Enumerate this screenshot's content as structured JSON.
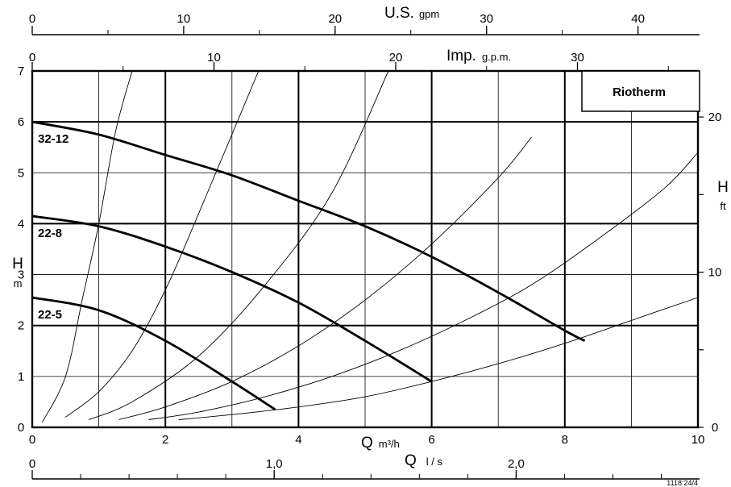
{
  "chart_data": {
    "type": "line",
    "brand": "Riotherm",
    "figure_code": "1118:24/4",
    "x": {
      "label_main": "Q",
      "label_unit": "m³/h",
      "range": [
        0,
        10
      ],
      "tick_labels": [
        {
          "v": 0,
          "text": "0"
        },
        {
          "v": 2,
          "text": "2"
        },
        {
          "v": 4,
          "text": "4"
        },
        {
          "v": 6,
          "text": "6"
        },
        {
          "v": 8,
          "text": "8"
        },
        {
          "v": 10,
          "text": "10"
        }
      ]
    },
    "y": {
      "label_main": "H",
      "label_unit": "m",
      "range": [
        0,
        7
      ],
      "tick_labels": [
        {
          "v": 0,
          "text": "0"
        },
        {
          "v": 1,
          "text": "1"
        },
        {
          "v": 2,
          "text": "2"
        },
        {
          "v": 3,
          "text": "3"
        },
        {
          "v": 4,
          "text": "4"
        },
        {
          "v": 5,
          "text": "5"
        },
        {
          "v": 6,
          "text": "6"
        },
        {
          "v": 7,
          "text": "7"
        }
      ]
    },
    "y_ft": {
      "label_main": "H",
      "label_unit": "ft",
      "tick_labels": [
        {
          "v": 0,
          "text": "0"
        },
        {
          "v": 10,
          "text": "10"
        },
        {
          "v": 20,
          "text": "20"
        }
      ]
    },
    "top_usgpm": {
      "label_main": "U.S.",
      "label_unit": "gpm",
      "tick_labels": [
        {
          "v": 0,
          "text": "0"
        },
        {
          "v": 10,
          "text": "10"
        },
        {
          "v": 20,
          "text": "20"
        },
        {
          "v": 30,
          "text": "30"
        },
        {
          "v": 40,
          "text": "40"
        }
      ]
    },
    "top_imp": {
      "label_main": "Imp.",
      "label_unit": "g.p.m.",
      "tick_labels": [
        {
          "v": 0,
          "text": "0"
        },
        {
          "v": 10,
          "text": "10"
        },
        {
          "v": 20,
          "text": "20"
        },
        {
          "v": 30,
          "text": "30"
        }
      ]
    },
    "bottom_ls": {
      "label_main": "Q",
      "label_unit": "l / s",
      "tick_labels": [
        {
          "v": 0,
          "text": "0"
        },
        {
          "v": 1,
          "text": "1,0"
        },
        {
          "v": 2,
          "text": "2,0"
        }
      ]
    },
    "series": [
      {
        "name": "32-12",
        "x": [
          0,
          1,
          2,
          3,
          4,
          5,
          6,
          7,
          8,
          8.3
        ],
        "y": [
          6.0,
          5.75,
          5.35,
          4.95,
          4.45,
          3.95,
          3.35,
          2.65,
          1.9,
          1.7
        ]
      },
      {
        "name": "22-8",
        "x": [
          0,
          1,
          2,
          3,
          4,
          5,
          6
        ],
        "y": [
          4.15,
          3.95,
          3.55,
          3.05,
          2.45,
          1.7,
          0.9
        ]
      },
      {
        "name": "22-5",
        "x": [
          0,
          1,
          2,
          3,
          3.65
        ],
        "y": [
          2.55,
          2.3,
          1.7,
          0.9,
          0.35
        ]
      }
    ],
    "system_curves": [
      {
        "x": [
          0.15,
          0.5,
          0.75,
          1.0,
          1.25,
          1.5
        ],
        "y": [
          0.1,
          1.0,
          2.5,
          4.0,
          5.8,
          7.0
        ]
      },
      {
        "x": [
          0.5,
          1.0,
          1.5,
          2.0,
          2.5,
          3.4
        ],
        "y": [
          0.2,
          0.7,
          1.5,
          2.7,
          4.2,
          7.0
        ]
      },
      {
        "x": [
          0.85,
          1.5,
          2.5,
          3.5,
          4.5,
          5.35
        ],
        "y": [
          0.15,
          0.5,
          1.4,
          2.8,
          4.6,
          7.0
        ]
      },
      {
        "x": [
          1.3,
          2.0,
          3.0,
          4.0,
          5.0,
          6.0,
          7.0,
          7.5
        ],
        "y": [
          0.15,
          0.4,
          0.9,
          1.6,
          2.5,
          3.6,
          4.9,
          5.7
        ]
      },
      {
        "x": [
          1.75,
          2.5,
          3.5,
          4.5,
          5.5,
          6.5,
          7.5,
          8.5,
          9.5,
          10.0
        ],
        "y": [
          0.15,
          0.3,
          0.6,
          1.0,
          1.5,
          2.1,
          2.8,
          3.7,
          4.7,
          5.4
        ]
      },
      {
        "x": [
          2.2,
          3.0,
          4.0,
          5.0,
          6.0,
          7.0,
          8.0,
          9.0,
          10.0
        ],
        "y": [
          0.15,
          0.25,
          0.4,
          0.6,
          0.9,
          1.25,
          1.65,
          2.1,
          2.55
        ]
      }
    ],
    "grid": true,
    "legend": "none"
  }
}
